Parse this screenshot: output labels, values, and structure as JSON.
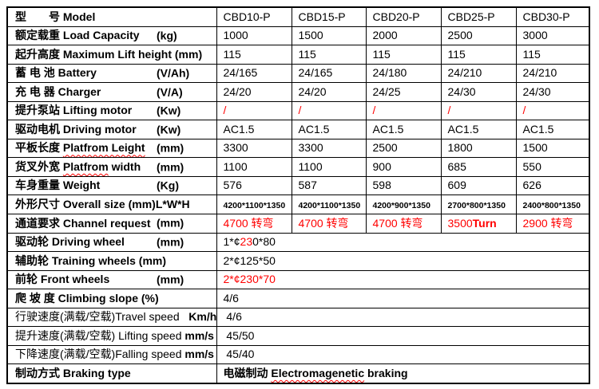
{
  "accent_red": "#ff0000",
  "border_color": "#000000",
  "table": {
    "rows": [
      {
        "id": "model",
        "label": [
          {
            "t": "型　　号 ",
            "s": "b"
          },
          {
            "t": "Model",
            "s": "b"
          }
        ],
        "unit": null,
        "cells": [
          [
            {
              "t": "CBD10-P"
            }
          ],
          [
            {
              "t": "CBD15-P"
            }
          ],
          [
            {
              "t": "CBD20-P"
            }
          ],
          [
            {
              "t": "CBD25-P"
            }
          ],
          [
            {
              "t": "CBD30-P"
            }
          ]
        ]
      },
      {
        "id": "load-capacity",
        "label": [
          {
            "t": "额定载重 Load Capacity",
            "s": "b"
          }
        ],
        "unit": "(kg)",
        "cells": [
          [
            {
              "t": "1000"
            }
          ],
          [
            {
              "t": "1500"
            }
          ],
          [
            {
              "t": "2000"
            }
          ],
          [
            {
              "t": "2500"
            }
          ],
          [
            {
              "t": "3000"
            }
          ]
        ]
      },
      {
        "id": "lift-height",
        "label": [
          {
            "t": "起升高度 Maximum Lift height (mm)",
            "s": "b"
          }
        ],
        "unit": null,
        "cells": [
          [
            {
              "t": "115"
            }
          ],
          [
            {
              "t": "115"
            }
          ],
          [
            {
              "t": "115"
            }
          ],
          [
            {
              "t": "115"
            }
          ],
          [
            {
              "t": "115"
            }
          ]
        ]
      },
      {
        "id": "battery",
        "label": [
          {
            "t": "蓄 电 池 Battery",
            "s": "b"
          }
        ],
        "unit": "(V/Ah)",
        "cells": [
          [
            {
              "t": "24/165"
            }
          ],
          [
            {
              "t": "24/165"
            }
          ],
          [
            {
              "t": "24/180"
            }
          ],
          [
            {
              "t": "24/210"
            }
          ],
          [
            {
              "t": "24/210"
            }
          ]
        ]
      },
      {
        "id": "charger",
        "label": [
          {
            "t": "充 电 器 Charger",
            "s": "b"
          }
        ],
        "unit": "(V/A)",
        "cells": [
          [
            {
              "t": "24/20"
            }
          ],
          [
            {
              "t": "24/20"
            }
          ],
          [
            {
              "t": "24/25"
            }
          ],
          [
            {
              "t": "24/30"
            }
          ],
          [
            {
              "t": "24/30"
            }
          ]
        ]
      },
      {
        "id": "lifting-motor",
        "label": [
          {
            "t": "提升泵站 Lifting motor",
            "s": "b"
          }
        ],
        "unit": "(Kw)",
        "cells": [
          [
            {
              "t": "/",
              "s": "red"
            }
          ],
          [
            {
              "t": "/",
              "s": "red"
            }
          ],
          [
            {
              "t": "/",
              "s": "red"
            }
          ],
          [
            {
              "t": "/",
              "s": "red"
            }
          ],
          [
            {
              "t": "/",
              "s": "red"
            }
          ]
        ]
      },
      {
        "id": "driving-motor",
        "label": [
          {
            "t": "驱动电机 Driving motor",
            "s": "b"
          }
        ],
        "unit": "(Kw)",
        "cells": [
          [
            {
              "t": "AC1.5"
            }
          ],
          [
            {
              "t": "AC1.5"
            }
          ],
          [
            {
              "t": "AC1.5"
            }
          ],
          [
            {
              "t": "AC1.5"
            }
          ],
          [
            {
              "t": "AC1.5"
            }
          ]
        ]
      },
      {
        "id": "platform-length",
        "label": [
          {
            "t": "平板长度 ",
            "s": "b"
          },
          {
            "t": "Platfrom Leight",
            "s": "b wavy"
          }
        ],
        "unit": "(mm)",
        "cells": [
          [
            {
              "t": "3300"
            }
          ],
          [
            {
              "t": "3300"
            }
          ],
          [
            {
              "t": "2500"
            }
          ],
          [
            {
              "t": "1800"
            }
          ],
          [
            {
              "t": "1500"
            }
          ]
        ]
      },
      {
        "id": "platform-width",
        "label": [
          {
            "t": "货叉外宽 ",
            "s": "b"
          },
          {
            "t": "Platfrom",
            "s": "b wavy"
          },
          {
            "t": " width",
            "s": "b"
          }
        ],
        "unit": "(mm)",
        "cells": [
          [
            {
              "t": "1100"
            }
          ],
          [
            {
              "t": "1100"
            }
          ],
          [
            {
              "t": "900"
            }
          ],
          [
            {
              "t": "685"
            }
          ],
          [
            {
              "t": "550"
            }
          ]
        ]
      },
      {
        "id": "weight",
        "label": [
          {
            "t": "车身重量 Weight",
            "s": "b"
          }
        ],
        "unit": "(Kg)",
        "cells": [
          [
            {
              "t": "576"
            }
          ],
          [
            {
              "t": "587"
            }
          ],
          [
            {
              "t": "598"
            }
          ],
          [
            {
              "t": "609"
            }
          ],
          [
            {
              "t": "626"
            }
          ]
        ]
      },
      {
        "id": "overall-size",
        "label": [
          {
            "t": "外形尺寸 Overall size (mm)L*W*H",
            "s": "b"
          }
        ],
        "unit": null,
        "cells": [
          [
            {
              "t": "4200*1100*1350",
              "s": "sm"
            }
          ],
          [
            {
              "t": "4200*1100*1350",
              "s": "sm"
            }
          ],
          [
            {
              "t": "4200*900*1350",
              "s": "sm"
            }
          ],
          [
            {
              "t": "2700*800*1350",
              "s": "sm"
            }
          ],
          [
            {
              "t": "2400*800*1350",
              "s": "sm"
            }
          ]
        ]
      },
      {
        "id": "channel-request",
        "label": [
          {
            "t": "通道要求 Channel request",
            "s": "b"
          }
        ],
        "unit": "(mm)",
        "cells": [
          [
            {
              "t": "4700 转弯",
              "s": "red"
            }
          ],
          [
            {
              "t": "4700 转弯",
              "s": "red"
            }
          ],
          [
            {
              "t": "4700 转弯",
              "s": "red"
            }
          ],
          [
            {
              "t": "3500",
              "s": "red"
            },
            {
              "t": "Turn",
              "s": "red b"
            }
          ],
          [
            {
              "t": "2900 转弯",
              "s": "red"
            }
          ]
        ]
      },
      {
        "id": "driving-wheel",
        "label": [
          {
            "t": "驱动轮 Driving wheel",
            "s": "b"
          }
        ],
        "unit": "(mm)",
        "merged": true,
        "cells": [
          [
            {
              "t": "1*¢"
            },
            {
              "t": "23",
              "s": "red"
            },
            {
              "t": "0*80"
            }
          ]
        ]
      },
      {
        "id": "training-wheels",
        "label": [
          {
            "t": "辅助轮 Training wheels (mm)",
            "s": "b"
          }
        ],
        "unit": null,
        "merged": true,
        "cells": [
          [
            {
              "t": "2*¢125*50"
            }
          ]
        ]
      },
      {
        "id": "front-wheels",
        "label": [
          {
            "t": "前轮 Front wheels",
            "s": "b"
          }
        ],
        "unit": "(mm)",
        "merged": true,
        "cells": [
          [
            {
              "t": "2*¢230*70",
              "s": "red"
            }
          ]
        ]
      },
      {
        "id": "climbing-slope",
        "label": [
          {
            "t": "爬 坡 度 Climbing slope (%)",
            "s": "b"
          }
        ],
        "unit": null,
        "merged": true,
        "cells": [
          [
            {
              "t": "4/6"
            }
          ]
        ]
      },
      {
        "id": "travel-speed",
        "label": [
          {
            "t": "行驶速度(满载/空载)Travel speed   "
          },
          {
            "t": "Km/h",
            "s": "b"
          }
        ],
        "unit": null,
        "merged": true,
        "cells": [
          [
            {
              "t": " 4/6"
            }
          ]
        ]
      },
      {
        "id": "lifting-speed",
        "label": [
          {
            "t": "提升速度(满载/空载) Lifting speed "
          },
          {
            "t": "mm/s",
            "s": "b"
          }
        ],
        "unit": null,
        "merged": true,
        "cells": [
          [
            {
              "t": " 45/50"
            }
          ]
        ]
      },
      {
        "id": "falling-speed",
        "label": [
          {
            "t": "下降速度(满载/空载)Falling speed "
          },
          {
            "t": "mm/s",
            "s": "b"
          }
        ],
        "unit": null,
        "merged": true,
        "cells": [
          [
            {
              "t": " 45/40"
            }
          ]
        ]
      },
      {
        "id": "braking-type",
        "label": [
          {
            "t": "制动方式 Braking type",
            "s": "b"
          }
        ],
        "unit": null,
        "merged": true,
        "cells": [
          [
            {
              "t": "电磁制动 ",
              "s": "b"
            },
            {
              "t": "Electromagenetic",
              "s": "b wavy"
            },
            {
              "t": " braking",
              "s": "b"
            }
          ]
        ]
      }
    ]
  }
}
